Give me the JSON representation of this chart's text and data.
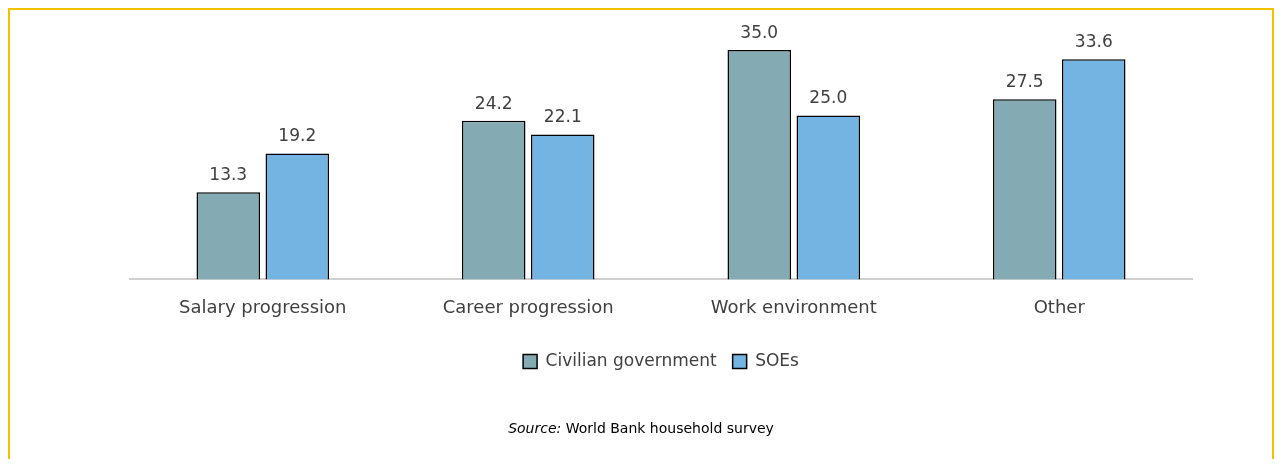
{
  "chart_data": {
    "type": "bar",
    "categories": [
      "Salary progression",
      "Career progression",
      "Work environment",
      "Other"
    ],
    "series": [
      {
        "name": "Civilian government",
        "color": "#84aab4",
        "values": [
          13.3,
          24.2,
          35,
          27.5
        ],
        "value_labels": [
          "13.3",
          "24.2",
          "35.0",
          "27.5"
        ]
      },
      {
        "name": "SOEs",
        "color": "#73b4e2",
        "values": [
          19.2,
          22.1,
          25,
          33.6
        ],
        "value_labels": [
          "19.2",
          "22.1",
          "25.0",
          "33.6"
        ]
      }
    ],
    "legend": "bottom",
    "grid": false,
    "annotations": [
      "Source: World Bank household survey"
    ]
  }
}
